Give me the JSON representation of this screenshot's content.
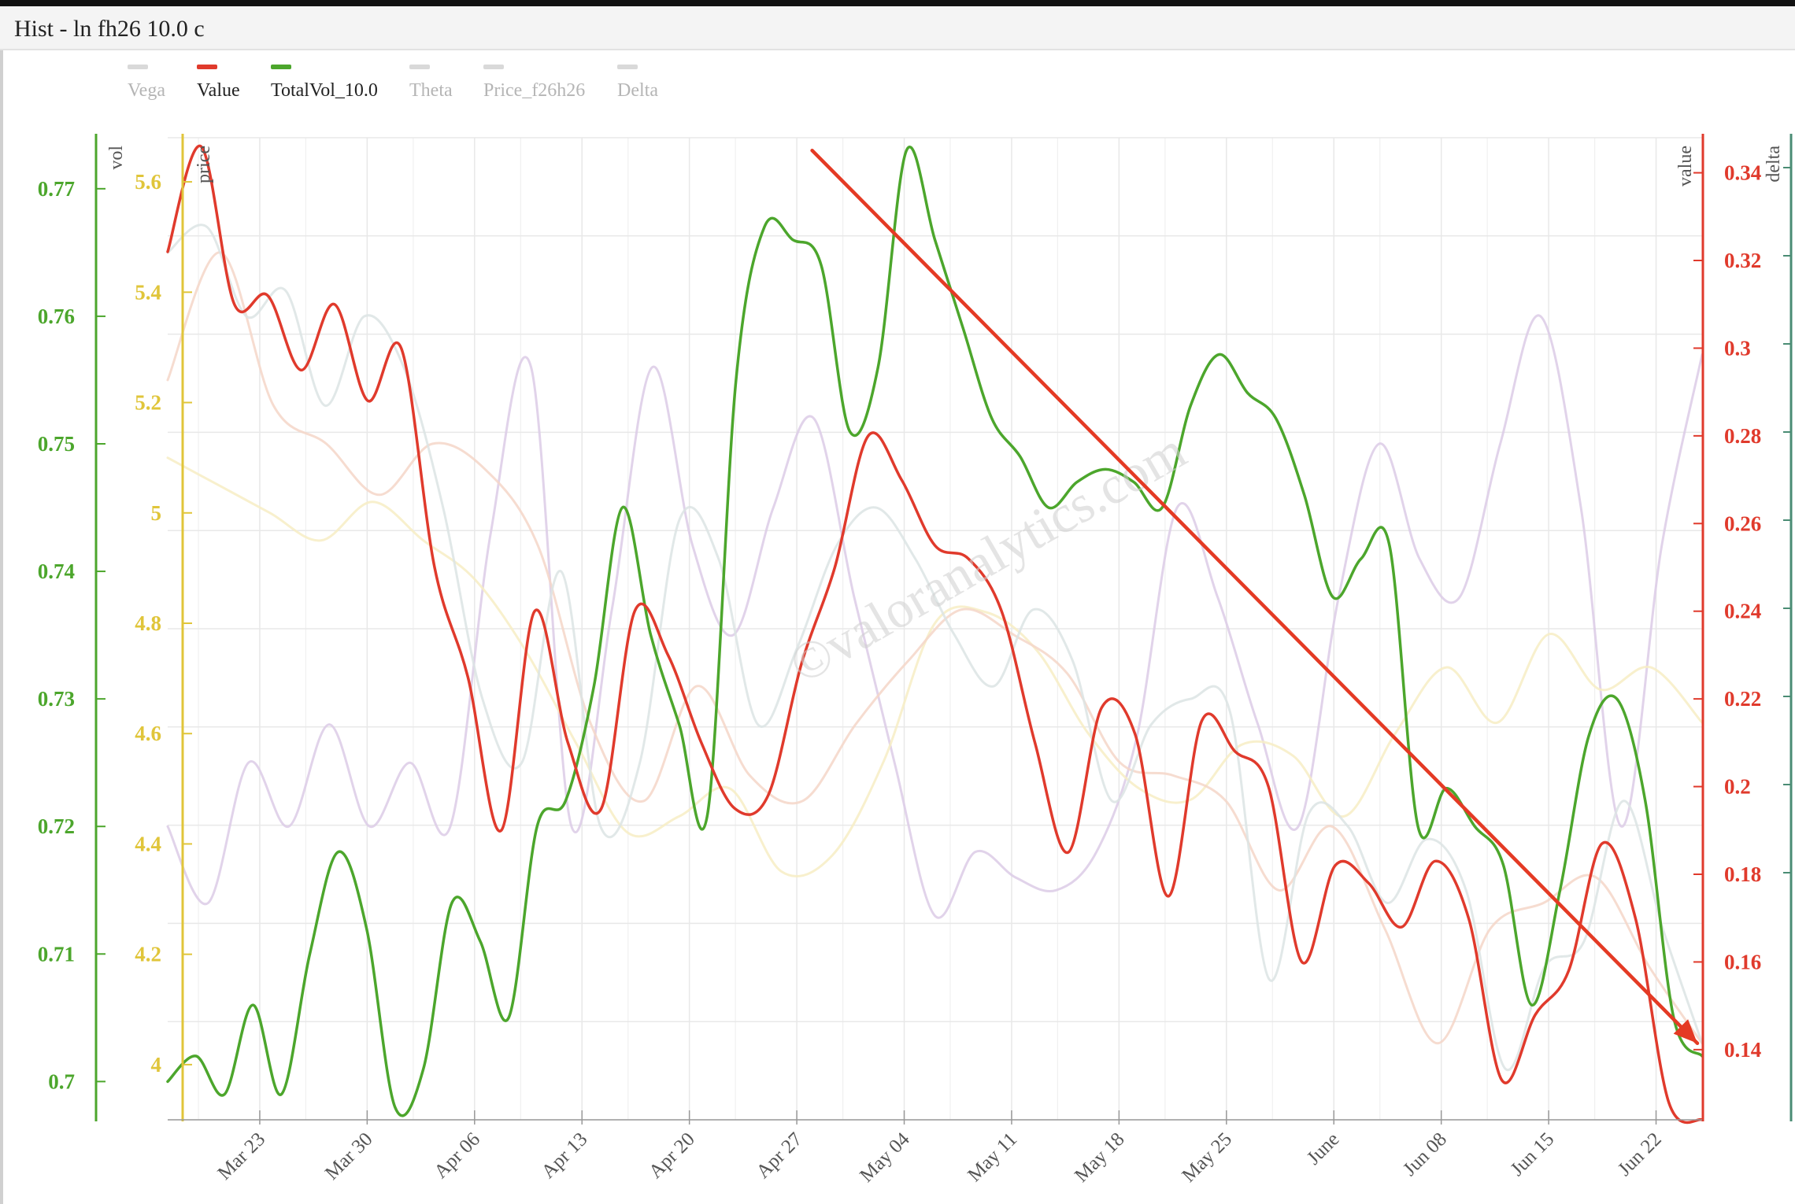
{
  "window": {
    "title": "Hist - ln fh26 10.0 c"
  },
  "legend": [
    {
      "name": "Vega",
      "color": "#d9d9d9",
      "active": false
    },
    {
      "name": "Value",
      "color": "#e03a2c",
      "active": true
    },
    {
      "name": "TotalVol_10.0",
      "color": "#4ca62c",
      "active": true
    },
    {
      "name": "Theta",
      "color": "#d9d9d9",
      "active": false
    },
    {
      "name": "Price_f26h26",
      "color": "#d9d9d9",
      "active": false
    },
    {
      "name": "Delta",
      "color": "#d9d9d9",
      "active": false
    }
  ],
  "watermark": "©valoranalytics.com",
  "chart_data": {
    "type": "line",
    "x_dates": [
      "Mar 17",
      "Mar 18",
      "Mar 19",
      "Mar 20",
      "Mar 21",
      "Mar 24",
      "Mar 25",
      "Mar 26",
      "Mar 27",
      "Mar 28",
      "Mar 31",
      "Apr 01",
      "Apr 02",
      "Apr 03",
      "Apr 04",
      "Apr 07",
      "Apr 08",
      "Apr 09",
      "Apr 10",
      "Apr 11",
      "Apr 14",
      "Apr 15",
      "Apr 16",
      "Apr 17",
      "Apr 18",
      "Apr 21",
      "Apr 22",
      "Apr 23",
      "Apr 24",
      "Apr 25",
      "Apr 28",
      "Apr 29",
      "Apr 30",
      "May 01",
      "May 02",
      "May 05",
      "May 06",
      "May 07",
      "May 08",
      "May 09",
      "May 12",
      "May 13",
      "May 14",
      "May 15",
      "May 16",
      "May 19",
      "May 20",
      "May 21",
      "May 22",
      "May 23",
      "May 27",
      "May 28",
      "May 29",
      "May 30",
      "Jun 02",
      "Jun 03",
      "Jun 04",
      "Jun 05",
      "Jun 06",
      "Jun 09",
      "Jun 10",
      "Jun 11",
      "Jun 12",
      "Jun 13",
      "Jun 16",
      "Jun 17",
      "Jun 18",
      "Jun 20",
      "Jun 23",
      "Jun 24",
      "Jun 25"
    ],
    "x_ticks": [
      "Mar 23",
      "Mar 30",
      "Apr 06",
      "Apr 13",
      "Apr 20",
      "Apr 27",
      "May 04",
      "May 11",
      "May 18",
      "May 25",
      "June",
      "Jun 08",
      "Jun 15",
      "Jun 22"
    ],
    "axes": [
      {
        "name": "vol",
        "side": "left",
        "color": "#4ca62c",
        "ticks": [
          "0.7",
          "0.71",
          "0.72",
          "0.73",
          "0.74",
          "0.75",
          "0.76",
          "0.77"
        ],
        "range": [
          0.697,
          0.774
        ]
      },
      {
        "name": "price",
        "side": "left",
        "color": "#e0c53a",
        "ticks": [
          "4",
          "4.2",
          "4.4",
          "4.6",
          "4.8",
          "5",
          "5.2",
          "5.4",
          "5.6"
        ],
        "range": [
          3.9,
          5.68
        ]
      },
      {
        "name": "value",
        "side": "right",
        "color": "#e03a2c",
        "ticks": [
          "0.14",
          "0.16",
          "0.18",
          "0.2",
          "0.22",
          "0.24",
          "0.26",
          "0.28",
          "0.3",
          "0.32",
          "0.34"
        ],
        "range": [
          0.124,
          0.348
        ]
      },
      {
        "name": "delta",
        "side": "right",
        "color": "#4a8c74",
        "ticks": []
      }
    ],
    "grid": true,
    "legend_position": "top-left",
    "series": [
      {
        "name": "TotalVol_10.0",
        "axis": "vol",
        "color": "#4ca62c",
        "values": [
          0.7,
          0.702,
          0.699,
          0.706,
          0.699,
          0.71,
          0.718,
          0.712,
          0.698,
          0.701,
          0.714,
          0.711,
          0.705,
          0.72,
          0.722,
          0.731,
          0.745,
          0.735,
          0.728,
          0.721,
          0.755,
          0.767,
          0.766,
          0.764,
          0.751,
          0.756,
          0.773,
          0.766,
          0.759,
          0.752,
          0.749,
          0.745,
          0.747,
          0.748,
          0.747,
          0.745,
          0.753,
          0.757,
          0.754,
          0.752,
          0.746,
          0.738,
          0.741,
          0.742,
          0.72,
          0.723,
          0.72,
          0.717,
          0.706,
          0.715,
          0.727,
          0.73,
          0.722,
          0.705,
          0.702
        ]
      },
      {
        "name": "Value",
        "axis": "value",
        "color": "#e03a2c",
        "values": [
          0.322,
          0.346,
          0.31,
          0.312,
          0.295,
          0.31,
          0.288,
          0.3,
          0.25,
          0.225,
          0.19,
          0.24,
          0.21,
          0.195,
          0.24,
          0.23,
          0.21,
          0.195,
          0.198,
          0.228,
          0.25,
          0.28,
          0.27,
          0.255,
          0.252,
          0.24,
          0.21,
          0.185,
          0.218,
          0.212,
          0.175,
          0.215,
          0.208,
          0.2,
          0.16,
          0.182,
          0.178,
          0.168,
          0.183,
          0.17,
          0.133,
          0.148,
          0.158,
          0.187,
          0.17,
          0.128,
          0.124
        ]
      },
      {
        "name": "Vega",
        "axis": "vol",
        "color": "#dce4e4",
        "values": [
          0.765,
          0.767,
          0.76,
          0.762,
          0.753,
          0.76,
          0.756,
          0.745,
          0.73,
          0.725,
          0.74,
          0.72,
          0.725,
          0.744,
          0.741,
          0.728,
          0.734,
          0.742,
          0.745,
          0.741,
          0.735,
          0.731,
          0.737,
          0.733,
          0.722,
          0.728,
          0.73,
          0.729,
          0.708,
          0.721,
          0.72,
          0.714,
          0.719,
          0.715,
          0.701,
          0.709,
          0.711,
          0.722,
          0.712,
          0.703
        ]
      },
      {
        "name": "Theta",
        "axis": "vol",
        "color": "#f5d6c8",
        "values": [
          0.755,
          0.765,
          0.753,
          0.75,
          0.746,
          0.75,
          0.748,
          0.742,
          0.728,
          0.722,
          0.731,
          0.724,
          0.722,
          0.728,
          0.733,
          0.737,
          0.735,
          0.732,
          0.725,
          0.724,
          0.722,
          0.715,
          0.72,
          0.712,
          0.703,
          0.712,
          0.714,
          0.716,
          0.709,
          0.703
        ]
      },
      {
        "name": "Price_f26h26",
        "axis": "price",
        "color": "#f7edc4",
        "values": [
          5.1,
          5.05,
          5.0,
          4.95,
          5.02,
          4.95,
          4.88,
          4.75,
          4.58,
          4.42,
          4.45,
          4.5,
          4.35,
          4.38,
          4.55,
          4.8,
          4.82,
          4.75,
          4.6,
          4.5,
          4.48,
          4.58,
          4.56,
          4.45,
          4.6,
          4.72,
          4.62,
          4.78,
          4.68,
          4.72,
          4.62
        ]
      },
      {
        "name": "Delta",
        "axis": "vol",
        "color": "#dccbe6",
        "values": [
          0.72,
          0.714,
          0.725,
          0.72,
          0.728,
          0.72,
          0.725,
          0.72,
          0.743,
          0.756,
          0.72,
          0.737,
          0.756,
          0.742,
          0.735,
          0.745,
          0.752,
          0.738,
          0.725,
          0.713,
          0.718,
          0.716,
          0.715,
          0.718,
          0.727,
          0.745,
          0.738,
          0.728,
          0.72,
          0.738,
          0.75,
          0.741,
          0.738,
          0.75,
          0.76,
          0.745,
          0.72,
          0.742,
          0.757
        ]
      }
    ],
    "annotations": [
      {
        "type": "arrow",
        "color": "#e43a24",
        "from": {
          "date": "Apr 28",
          "vol": 0.773
        },
        "to": {
          "date": "Jun 25",
          "vol": 0.703
        }
      }
    ]
  }
}
